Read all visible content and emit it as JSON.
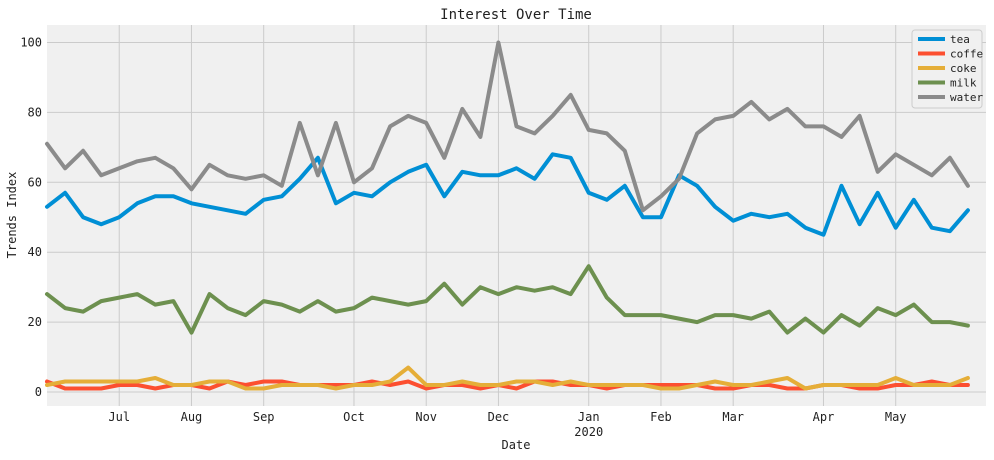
{
  "chart_data": {
    "type": "line",
    "title": "Interest Over Time",
    "xlabel": "Date",
    "ylabel": "Trends Index",
    "ylim": [
      -4,
      105
    ],
    "xlim": [
      0,
      52
    ],
    "grid": true,
    "legend_position": "top-right",
    "x_ticks": [
      {
        "label": "Jul",
        "sub": "",
        "x": 4
      },
      {
        "label": "Aug",
        "sub": "",
        "x": 8
      },
      {
        "label": "Sep",
        "sub": "",
        "x": 12
      },
      {
        "label": "Oct",
        "sub": "",
        "x": 17
      },
      {
        "label": "Nov",
        "sub": "",
        "x": 21
      },
      {
        "label": "Dec",
        "sub": "",
        "x": 25
      },
      {
        "label": "Jan",
        "sub": "2020",
        "x": 30
      },
      {
        "label": "Feb",
        "sub": "",
        "x": 34
      },
      {
        "label": "Mar",
        "sub": "",
        "x": 38
      },
      {
        "label": "Apr",
        "sub": "",
        "x": 43
      },
      {
        "label": "May",
        "sub": "",
        "x": 47
      }
    ],
    "y_ticks": [
      0,
      20,
      40,
      60,
      80,
      100
    ],
    "series": [
      {
        "name": "tea",
        "color": "#008fd5",
        "values": [
          53,
          57,
          50,
          48,
          50,
          54,
          56,
          56,
          54,
          53,
          52,
          51,
          55,
          56,
          61,
          67,
          54,
          57,
          56,
          60,
          63,
          65,
          56,
          63,
          62,
          62,
          64,
          61,
          68,
          67,
          57,
          55,
          59,
          50,
          50,
          62,
          59,
          53,
          49,
          51,
          50,
          51,
          47,
          45,
          59,
          48,
          57,
          47,
          55,
          47,
          46,
          52
        ]
      },
      {
        "name": "coffe",
        "color": "#fc4f30",
        "values": [
          3,
          1,
          1,
          1,
          2,
          2,
          1,
          2,
          2,
          1,
          3,
          2,
          3,
          3,
          2,
          2,
          2,
          2,
          3,
          2,
          3,
          1,
          2,
          2,
          1,
          2,
          1,
          3,
          3,
          2,
          2,
          1,
          2,
          2,
          2,
          2,
          2,
          1,
          1,
          2,
          2,
          1,
          1,
          2,
          2,
          1,
          1,
          2,
          2,
          3,
          2,
          2
        ]
      },
      {
        "name": "coke",
        "color": "#e5ae38",
        "values": [
          2,
          3,
          3,
          3,
          3,
          3,
          4,
          2,
          2,
          3,
          3,
          1,
          1,
          2,
          2,
          2,
          1,
          2,
          2,
          3,
          7,
          2,
          2,
          3,
          2,
          2,
          3,
          3,
          2,
          3,
          2,
          2,
          2,
          2,
          1,
          1,
          2,
          3,
          2,
          2,
          3,
          4,
          1,
          2,
          2,
          2,
          2,
          4,
          2,
          2,
          2,
          4
        ]
      },
      {
        "name": "milk",
        "color": "#6d904f",
        "values": [
          28,
          24,
          23,
          26,
          27,
          28,
          25,
          26,
          17,
          28,
          24,
          22,
          26,
          25,
          23,
          26,
          23,
          24,
          27,
          26,
          25,
          26,
          31,
          25,
          30,
          28,
          30,
          29,
          30,
          28,
          36,
          27,
          22,
          22,
          22,
          21,
          20,
          22,
          22,
          21,
          23,
          17,
          21,
          17,
          22,
          19,
          24,
          22,
          25,
          20,
          20,
          19
        ]
      },
      {
        "name": "water",
        "color": "#8b8b8b",
        "values": [
          71,
          64,
          69,
          62,
          64,
          66,
          67,
          64,
          58,
          65,
          62,
          61,
          62,
          59,
          77,
          62,
          77,
          60,
          64,
          76,
          79,
          77,
          67,
          81,
          73,
          100,
          76,
          74,
          79,
          85,
          75,
          74,
          69,
          52,
          56,
          61,
          74,
          78,
          79,
          83,
          78,
          81,
          76,
          76,
          73,
          79,
          63,
          68,
          65,
          62,
          67,
          59
        ]
      }
    ]
  }
}
